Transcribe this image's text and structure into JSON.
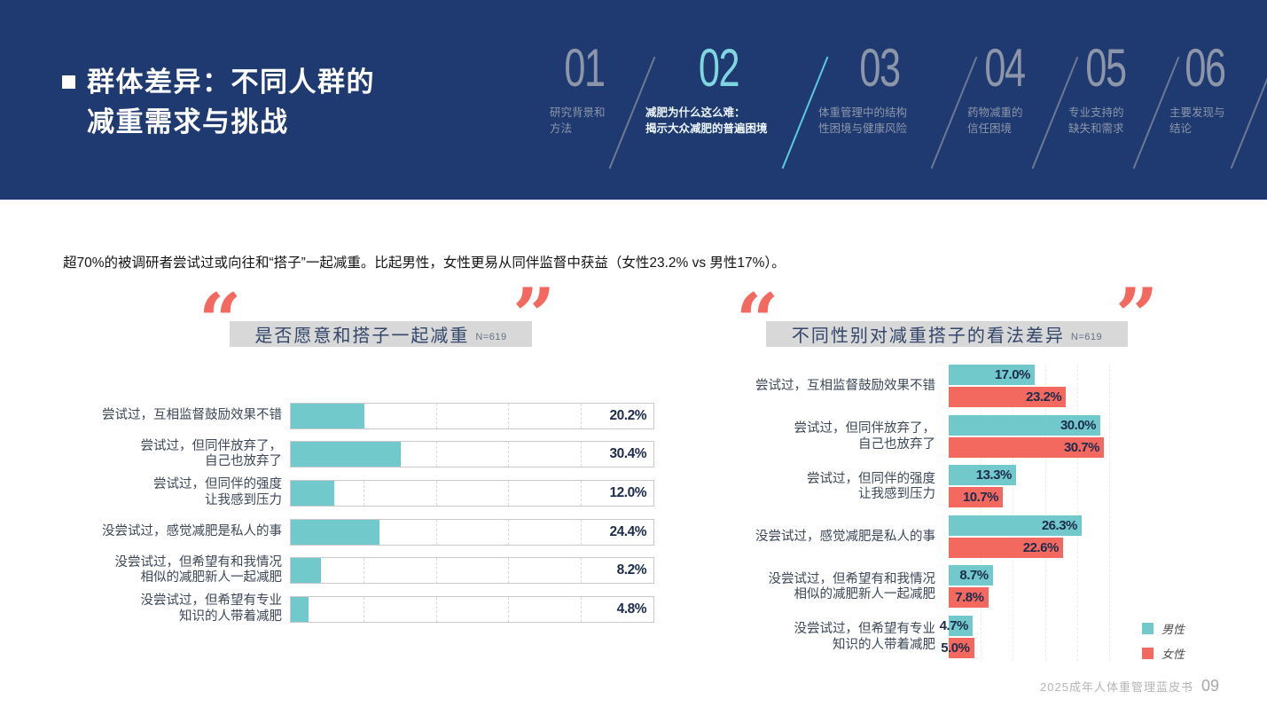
{
  "header": {
    "title_line1": "群体差异：不同人群的",
    "title_line2": "减重需求与挑战",
    "nav": [
      {
        "num": "01",
        "label_lines": [
          "研究背景和",
          "方法"
        ],
        "active": false
      },
      {
        "num": "02",
        "label_lines": [
          "减肥为什么这么难：",
          "揭示大众减肥的普遍困境"
        ],
        "active": true
      },
      {
        "num": "03",
        "label_lines": [
          "体重管理中的结构",
          "性困境与健康风险"
        ],
        "active": false
      },
      {
        "num": "04",
        "label_lines": [
          "药物减重的",
          "信任困境"
        ],
        "active": false
      },
      {
        "num": "05",
        "label_lines": [
          "专业支持的",
          "缺失和需求"
        ],
        "active": false
      },
      {
        "num": "06",
        "label_lines": [
          "主要发现与",
          "结论"
        ],
        "active": false
      }
    ]
  },
  "intro": "超70%的被调研者尝试过或向往和“搭子”一起减重。比起男性，女性更易从同伴监督中获益（女性23.2% vs 男性17%）。",
  "icons": {
    "quote_open": "“",
    "quote_close": "”"
  },
  "chart_data": [
    {
      "type": "bar",
      "orientation": "horizontal",
      "title": "是否愿意和搭子一起减重",
      "sample": "N=619",
      "categories": [
        "尝试过，互相监督鼓励效果不错",
        "尝试过，但同伴放弃了，自己也放弃了",
        "尝试过，但同伴的强度让我感到压力",
        "没尝试过，感觉减肥是私人的事",
        "没尝试过，但希望有和我情况相似的减肥新人一起减肥",
        "没尝试过，但希望有专业知识的人带着减肥"
      ],
      "category_lines": [
        [
          "尝试过，互相监督鼓励效果不错"
        ],
        [
          "尝试过，但同伴放弃了，",
          "自己也放弃了"
        ],
        [
          "尝试过，但同伴的强度",
          "让我感到压力"
        ],
        [
          "没尝试过，感觉减肥是私人的事"
        ],
        [
          "没尝试过，但希望有和我情况",
          "相似的减肥新人一起减肥"
        ],
        [
          "没尝试过，但希望有专业",
          "知识的人带着减肥"
        ]
      ],
      "values": [
        20.2,
        30.4,
        12.0,
        24.4,
        8.2,
        4.8
      ],
      "value_labels": [
        "20.2%",
        "30.4%",
        "12.0%",
        "24.4%",
        "8.2%",
        "4.8%"
      ],
      "xlim": [
        0,
        100
      ],
      "grid": "dashed-vertical-20pct",
      "bar_color": "#72c9cc"
    },
    {
      "type": "bar",
      "orientation": "horizontal",
      "grouped": true,
      "title": "不同性别对减重搭子的看法差异",
      "sample": "N=619",
      "categories": [
        "尝试过，互相监督鼓励效果不错",
        "尝试过，但同伴放弃了，自己也放弃了",
        "尝试过，但同伴的强度让我感到压力",
        "没尝试过，感觉减肥是私人的事",
        "没尝试过，但希望有和我情况相似的减肥新人一起减肥",
        "没尝试过，但希望有专业知识的人带着减肥"
      ],
      "category_lines": [
        [
          "尝试过，互相监督鼓励效果不错"
        ],
        [
          "尝试过，但同伴放弃了，",
          "自己也放弃了"
        ],
        [
          "尝试过，但同伴的强度",
          "让我感到压力"
        ],
        [
          "没尝试过，感觉减肥是私人的事"
        ],
        [
          "没尝试过，但希望有和我情况",
          "相似的减肥新人一起减肥"
        ],
        [
          "没尝试过，但希望有专业",
          "知识的人带着减肥"
        ]
      ],
      "series": [
        {
          "name": "男性",
          "color": "#72c9cc",
          "values": [
            17.0,
            30.0,
            13.3,
            26.3,
            8.7,
            4.7
          ],
          "value_labels": [
            "17.0%",
            "30.0%",
            "13.3%",
            "26.3%",
            "8.7%",
            "4.7%"
          ]
        },
        {
          "name": "女性",
          "color": "#f4695f",
          "values": [
            23.2,
            30.7,
            10.7,
            22.6,
            7.8,
            5.0
          ],
          "value_labels": [
            "23.2%",
            "30.7%",
            "10.7%",
            "22.6%",
            "7.8%",
            "5.0%"
          ]
        }
      ],
      "xlim": [
        0,
        32
      ],
      "legend_position": "bottom-right"
    }
  ],
  "legend": {
    "male": "男性",
    "female": "女性"
  },
  "footer": {
    "book": "2025成年人体重管理蓝皮书",
    "page": "09"
  },
  "colors": {
    "navy": "#1e3a70",
    "accent_cyan": "#7fd6e0",
    "male_teal": "#72c9cc",
    "female_coral": "#f4695f",
    "title_bar_gray": "#d8d8d8"
  }
}
